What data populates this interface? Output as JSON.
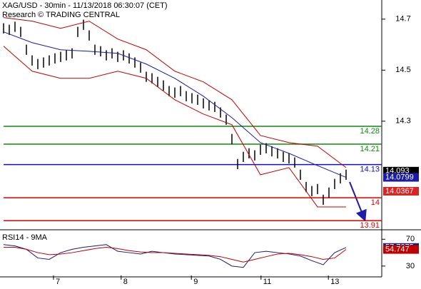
{
  "chart_data": [
    {
      "type": "ohlc",
      "title": "XAG/USD - 30min - 11/13/2018 06:30:07 (CET)",
      "subtitle": "Research © TRADING CENTRAL",
      "color": "#000000",
      "high": [
        14.684,
        14.678,
        14.69,
        14.67,
        14.6,
        14.558,
        14.544,
        14.55,
        14.558,
        14.566,
        14.572,
        14.578,
        14.586,
        14.67,
        14.698,
        14.656,
        14.6,
        14.594,
        14.578,
        14.586,
        14.572,
        14.578,
        14.566,
        14.55,
        14.53,
        14.494,
        14.488,
        14.474,
        14.46,
        14.438,
        14.432,
        14.438,
        14.418,
        14.41,
        14.404,
        14.39,
        14.382,
        14.376,
        14.354,
        14.326,
        14.25,
        14.152,
        14.18,
        14.194,
        14.186,
        14.208,
        14.214,
        14.202,
        14.194,
        14.18,
        14.174,
        14.158,
        14.11,
        14.062,
        14.046,
        14.054,
        14.012,
        14.04,
        14.074,
        14.096,
        14.11
      ],
      "low": [
        14.644,
        14.638,
        14.65,
        14.63,
        14.56,
        14.518,
        14.504,
        14.51,
        14.518,
        14.526,
        14.532,
        14.538,
        14.546,
        14.63,
        14.658,
        14.616,
        14.56,
        14.554,
        14.538,
        14.546,
        14.532,
        14.538,
        14.526,
        14.51,
        14.49,
        14.454,
        14.448,
        14.434,
        14.42,
        14.398,
        14.392,
        14.398,
        14.378,
        14.37,
        14.364,
        14.35,
        14.342,
        14.336,
        14.314,
        14.286,
        14.21,
        14.112,
        14.14,
        14.154,
        14.146,
        14.168,
        14.174,
        14.162,
        14.154,
        14.14,
        14.134,
        14.118,
        14.07,
        14.022,
        14.006,
        14.014,
        13.972,
        14.0,
        14.034,
        14.056,
        14.07
      ],
      "lines": [
        {
          "color": "#1c1ca8",
          "x": [
            0,
            5,
            10,
            15,
            20,
            25,
            30,
            35,
            40,
            45,
            50,
            55,
            60
          ],
          "values": [
            14.65,
            14.608,
            14.58,
            14.574,
            14.566,
            14.524,
            14.468,
            14.398,
            14.314,
            14.216,
            14.174,
            14.126,
            14.0799
          ]
        },
        {
          "color": "#c00000",
          "x": [
            0,
            5,
            10,
            15,
            20,
            25,
            30,
            35,
            40,
            45,
            50,
            55,
            60
          ],
          "values": [
            14.706,
            14.692,
            14.664,
            14.692,
            14.622,
            14.58,
            14.496,
            14.454,
            14.384,
            14.244,
            14.216,
            14.202,
            14.118
          ]
        },
        {
          "color": "#c00000",
          "x": [
            0,
            5,
            10,
            15,
            20,
            25,
            30,
            35,
            40,
            45,
            50,
            55,
            60
          ],
          "values": [
            14.594,
            14.496,
            14.468,
            14.468,
            14.496,
            14.468,
            14.384,
            14.328,
            14.286,
            14.09,
            14.118,
            13.964,
            13.964
          ]
        }
      ],
      "levels": [
        {
          "value": 14.28,
          "color": "#118811"
        },
        {
          "value": 14.21,
          "color": "#118811"
        },
        {
          "value": 14.13,
          "color": "#1010c0"
        },
        {
          "value": 14,
          "color": "#dd0000"
        },
        {
          "value": 13.91,
          "color": "#dd0000"
        }
      ],
      "markers": [
        {
          "value": 14.093,
          "color": "#000000"
        },
        {
          "value": 14.0799,
          "color": "#1c1ca8"
        },
        {
          "value": 14.0367,
          "color": "#dd2222"
        }
      ],
      "ylim": [
        13.88,
        14.775
      ],
      "yticks": [
        14.3,
        14.5,
        14.7
      ]
    },
    {
      "type": "line",
      "title": "RSI14 - 9MA",
      "lines": [
        {
          "color": "#1c1c6e",
          "x": [
            0,
            2,
            4,
            6,
            8,
            10,
            12,
            14,
            16,
            18,
            20,
            22,
            24,
            26,
            28,
            30,
            32,
            34,
            36,
            38,
            40,
            42,
            44,
            46,
            48,
            50,
            52,
            54,
            56,
            58,
            60
          ],
          "values": [
            62,
            60,
            55,
            42,
            40,
            50,
            55,
            58,
            60,
            62,
            52,
            50,
            48,
            52,
            50,
            48,
            47,
            46,
            45,
            40,
            30,
            28,
            50,
            52,
            50,
            48,
            45,
            38,
            32,
            50,
            57.7275
          ]
        },
        {
          "color": "#c00000",
          "x": [
            0,
            2,
            4,
            6,
            8,
            10,
            12,
            14,
            16,
            18,
            20,
            22,
            24,
            26,
            28,
            30,
            32,
            34,
            36,
            38,
            40,
            42,
            44,
            46,
            48,
            50,
            52,
            54,
            56,
            58,
            60
          ],
          "values": [
            58,
            58,
            55,
            50,
            47,
            48,
            50,
            53,
            56,
            58,
            56,
            53,
            51,
            50,
            50,
            49,
            48,
            47,
            46,
            44,
            40,
            36,
            40,
            44,
            48,
            49,
            47,
            44,
            40,
            42,
            54.747
          ]
        }
      ],
      "ylim": [
        16,
        82
      ],
      "yticks": [
        30,
        70
      ],
      "xticks": [
        {
          "value": 8.75,
          "label": "7"
        },
        {
          "value": 20.6,
          "label": "8"
        },
        {
          "value": 32.9,
          "label": "9"
        },
        {
          "value": 45.1,
          "label": "11"
        },
        {
          "value": 56.9,
          "label": "13"
        }
      ]
    }
  ]
}
